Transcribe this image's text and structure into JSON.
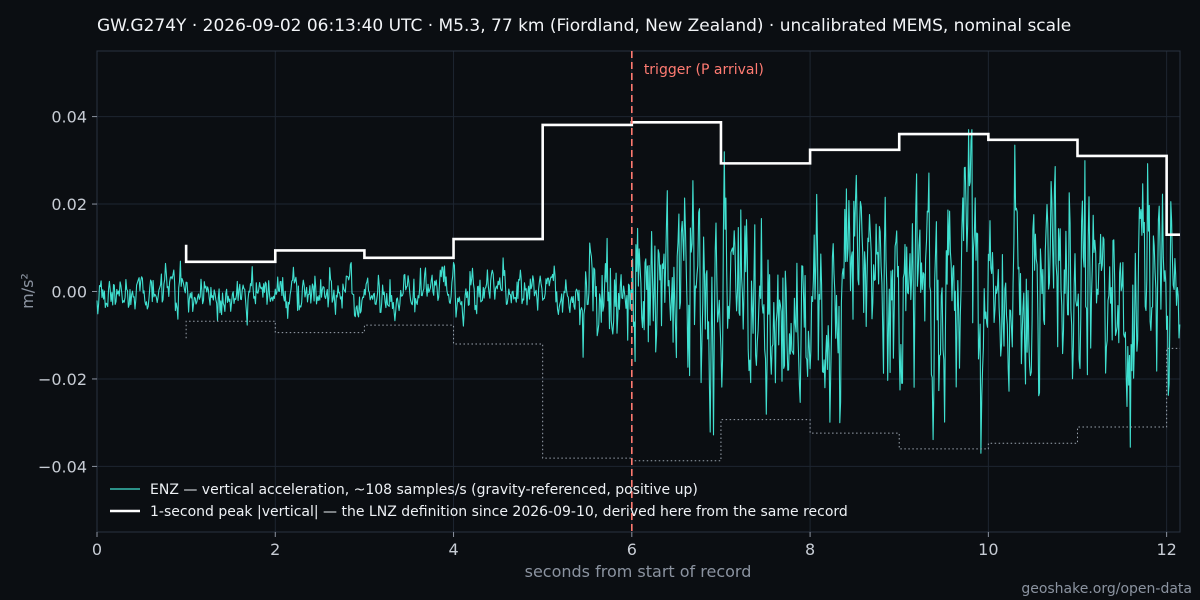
{
  "chart_data": {
    "type": "line",
    "title": "GW.G274Y  ·  2026-09-02 06:13:40 UTC  ·  M5.3, 77 km (Fiordland, New Zealand)  ·  uncalibrated MEMS, nominal scale",
    "xlabel": "seconds from start of record",
    "ylabel": "m/s²",
    "xlim": [
      0,
      12.15
    ],
    "ylim": [
      -0.055,
      0.055
    ],
    "x_ticks": [
      0,
      2,
      4,
      6,
      8,
      10,
      12
    ],
    "y_ticks": [
      {
        "value": 0.04,
        "label": "0.04"
      },
      {
        "value": 0.02,
        "label": "0.02"
      },
      {
        "value": 0.0,
        "label": "0.00"
      },
      {
        "value": -0.02,
        "label": "−0.02"
      },
      {
        "value": -0.04,
        "label": "−0.04"
      }
    ],
    "grid": true,
    "legend_position": "lower-left",
    "series": [
      {
        "name": "ENZ — vertical acceleration, ~108 samples/s (gravity-referenced, positive up)",
        "color": "#40e0d0",
        "sample_rate": 108,
        "duration": 12.15,
        "segments": [
          {
            "t0": 0,
            "t1": 5.4,
            "amplitude": 0.0025
          },
          {
            "t0": 5.4,
            "t1": 6.0,
            "amplitude": 0.006
          },
          {
            "t0": 6.0,
            "t1": 12.15,
            "amplitude": 0.012
          }
        ],
        "note": "envelope approximated from figure"
      },
      {
        "name": "1-second peak |vertical| — the LNZ definition since 2026-09-10, derived here from the same record",
        "color": "#ffffff",
        "type": "step",
        "x": [
          1,
          2,
          3,
          4,
          5,
          6,
          7,
          8,
          9,
          10,
          11,
          12
        ],
        "values": [
          0.0068,
          0.0094,
          0.0077,
          0.012,
          0.0381,
          0.0387,
          0.0293,
          0.0324,
          0.036,
          0.0347,
          0.031,
          0.013
        ],
        "start_value": 0.0107,
        "end_x": 12.15,
        "mirrored_dotted": true
      }
    ],
    "annotations": [
      {
        "x": 6,
        "text": "trigger (P arrival)",
        "color": "#ff7b72"
      }
    ]
  },
  "footer": {
    "credit": "geoshake.org/open-data"
  }
}
